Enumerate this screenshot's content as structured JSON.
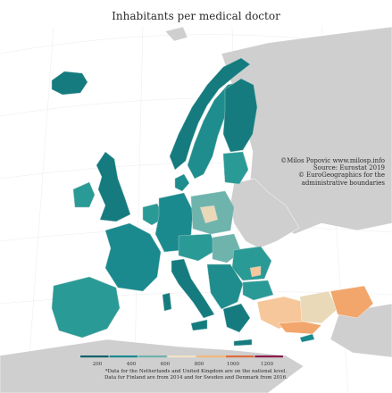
{
  "title": "Inhabitants per medical doctor",
  "credits": [
    "©Milos Popovic www.milosp.info",
    "Source: Eurostat 2019",
    "© EuroGeographics for the",
    "administrative boundaries"
  ],
  "legend": {
    "ticks": [
      "200",
      "400",
      "600",
      "800",
      "1000",
      "1200"
    ],
    "colors": [
      "#0e5f6a",
      "#1a8a8f",
      "#6fb3ad",
      "#f1e3c6",
      "#f2b97c",
      "#e06b3c",
      "#8c1a4a"
    ]
  },
  "footnote": [
    "*Data for the Netherlands and United Kingdom are on the national level.",
    "Data for Finland are from 2014 and for Sweden and Denmark from 2016."
  ],
  "colors": {
    "water": "#ffffff",
    "no_data_land": "#cfcfcf",
    "teal_dark": "#157b7f",
    "teal_mid": "#2a9a96",
    "teal_light": "#6fb3ad",
    "beige": "#e9d9b8",
    "orange": "#f2a66b",
    "orange_light": "#f6c79a",
    "border": "#9ac6c2"
  }
}
